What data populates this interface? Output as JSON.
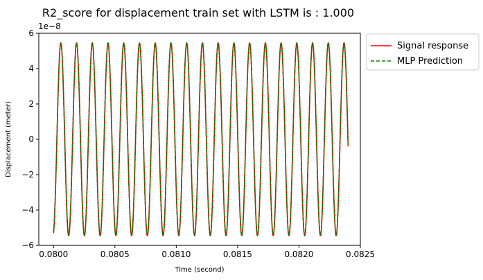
{
  "chart_data": {
    "type": "line",
    "title": "R2_score for displacement train set with LSTM is : 1.000",
    "xlabel": "Time (second)",
    "ylabel": "Displacement (meter)",
    "y_offset_label": "1e−8",
    "xlim": [
      0.07988,
      0.0825
    ],
    "ylim": [
      -6,
      6
    ],
    "x_ticks": [
      0.08,
      0.0805,
      0.081,
      0.0815,
      0.082,
      0.0825
    ],
    "x_tick_labels": [
      "0.0800",
      "0.0805",
      "0.0810",
      "0.0815",
      "0.0820",
      "0.0825"
    ],
    "y_ticks": [
      -6,
      -4,
      -2,
      0,
      2,
      4,
      6
    ],
    "y_tick_labels": [
      "−6",
      "−4",
      "−2",
      "0",
      "2",
      "4",
      "6"
    ],
    "y_unit_scale": "1e-8",
    "grid": false,
    "legend_position": "outside-top-right",
    "signal": {
      "x_start": 0.08,
      "x_end": 0.0824,
      "amplitude": 5.45,
      "frequency_hz": 7800,
      "start_value": -5.3,
      "end_value": -0.4
    },
    "series": [
      {
        "name": "Signal response",
        "color": "#ff0000",
        "style": "solid"
      },
      {
        "name": "MLP Prediction",
        "color": "#008000",
        "style": "dashed"
      }
    ]
  }
}
